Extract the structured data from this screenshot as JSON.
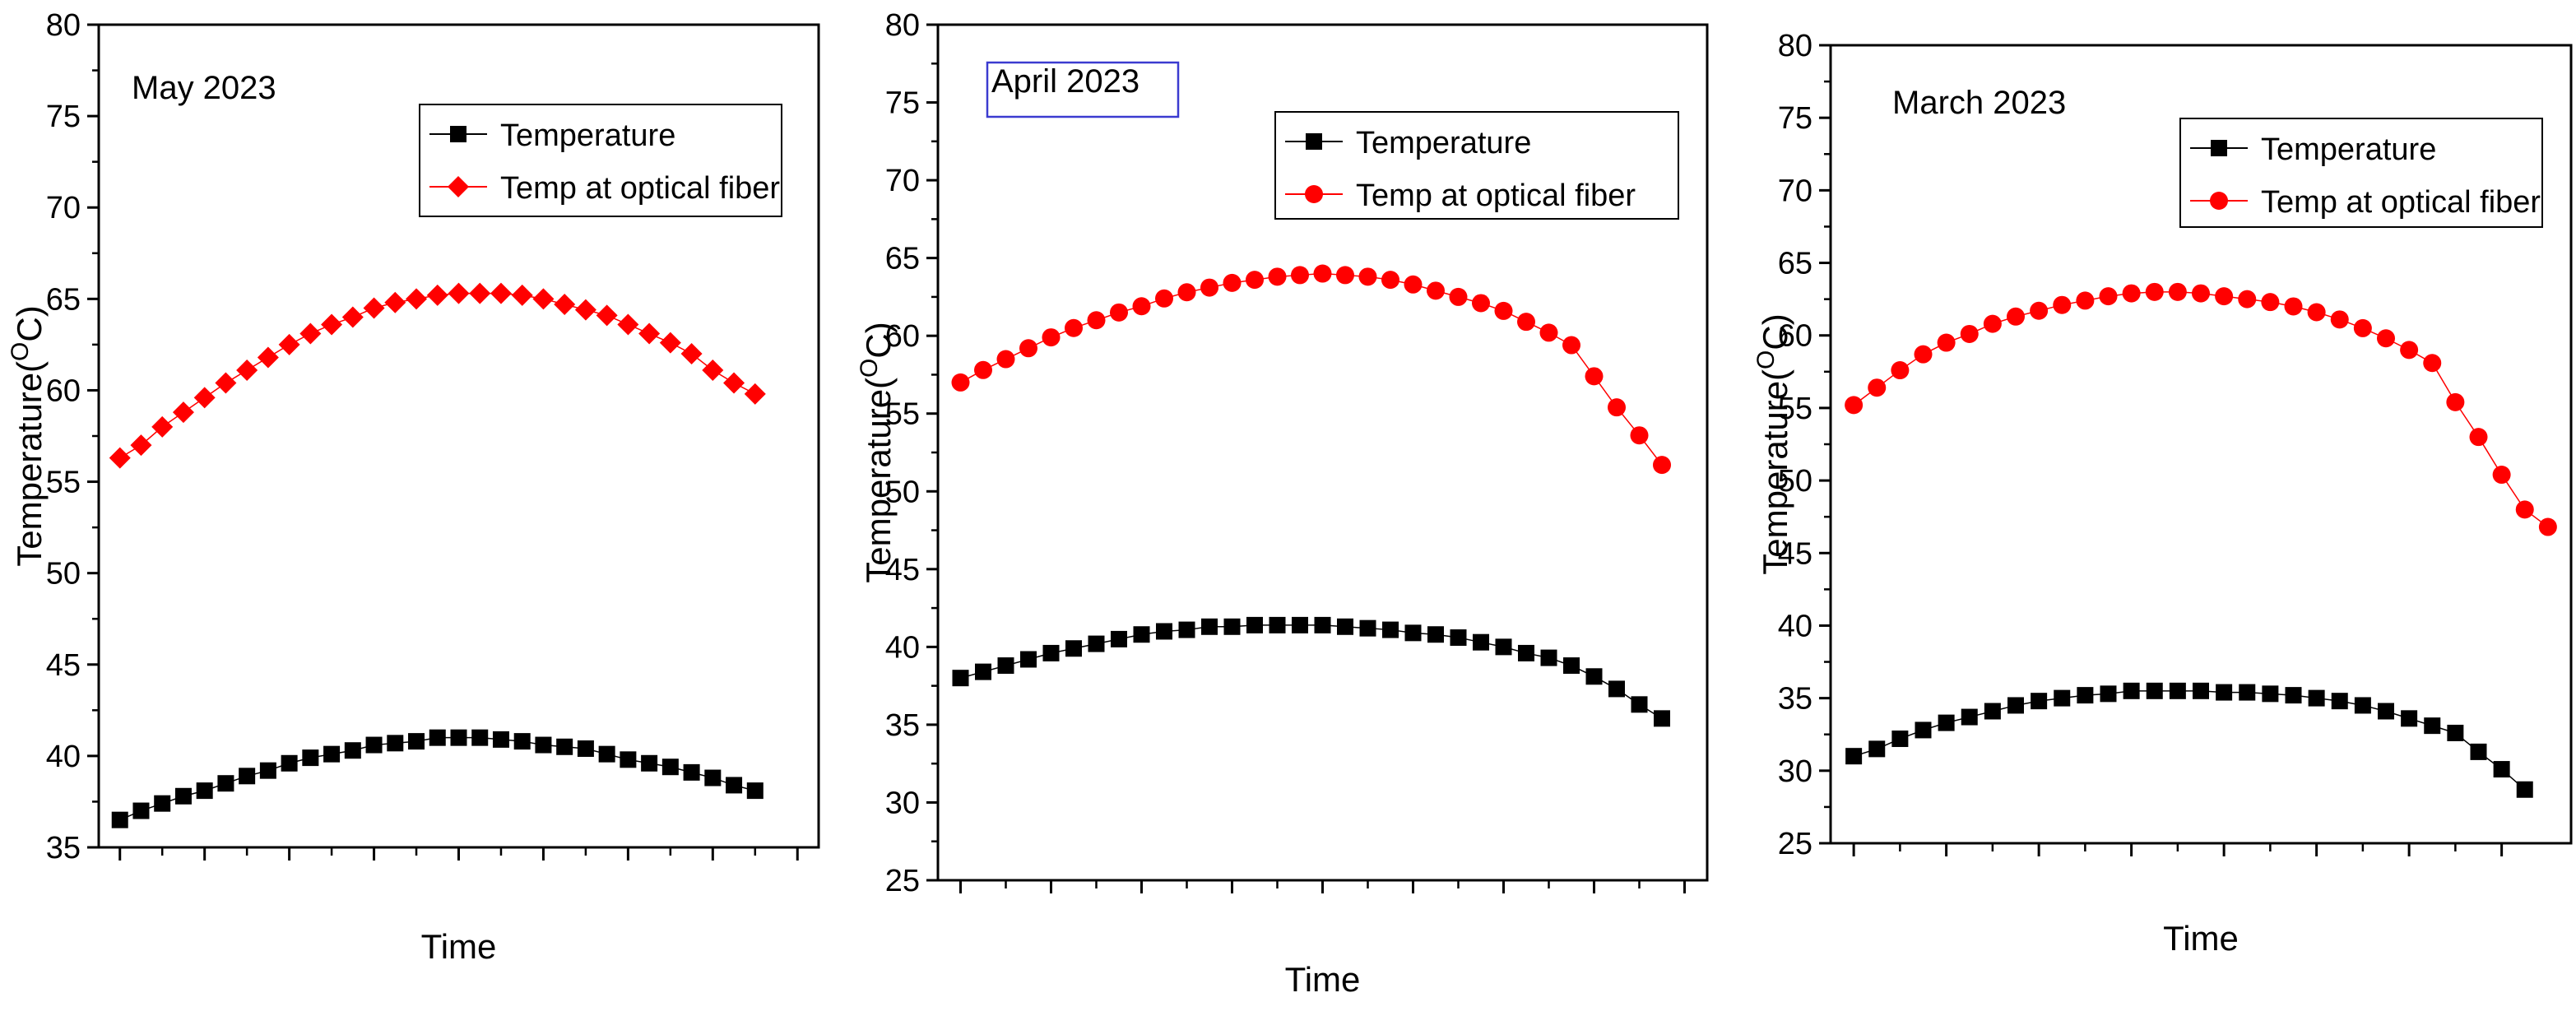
{
  "chart_data": [
    {
      "type": "scatter",
      "panel_label": "May 2023",
      "panel_label_boxed": false,
      "xlabel": "Time",
      "ylabel": "Temperature(",
      "ylabel_sup": "O",
      "ylabel_unit": "C)",
      "ylim": [
        35,
        80
      ],
      "yticks": [
        35,
        40,
        45,
        50,
        55,
        60,
        65,
        70,
        75,
        80
      ],
      "xlim": [
        -1,
        33
      ],
      "xticks": [
        0,
        4,
        8,
        12,
        16,
        20,
        24,
        28,
        32
      ],
      "grid": false,
      "legend_position": "top-right",
      "series": [
        {
          "name": "Temperature",
          "color": "#000000",
          "marker": "square",
          "x": [
            0,
            1,
            2,
            3,
            4,
            5,
            6,
            7,
            8,
            9,
            10,
            11,
            12,
            13,
            14,
            15,
            16,
            17,
            18,
            19,
            20,
            21,
            22,
            23,
            24,
            25,
            26,
            27,
            28,
            29,
            30
          ],
          "values": [
            36.5,
            37,
            37.4,
            37.8,
            38.1,
            38.5,
            38.9,
            39.2,
            39.6,
            39.9,
            40.1,
            40.3,
            40.6,
            40.7,
            40.8,
            41,
            41,
            41,
            40.9,
            40.8,
            40.6,
            40.5,
            40.4,
            40.1,
            39.8,
            39.6,
            39.4,
            39.1,
            38.8,
            38.4,
            38.1
          ]
        },
        {
          "name": "Temp at  optical fiber",
          "color": "#ff0000",
          "marker": "diamond",
          "x": [
            0,
            1,
            2,
            3,
            4,
            5,
            6,
            7,
            8,
            9,
            10,
            11,
            12,
            13,
            14,
            15,
            16,
            17,
            18,
            19,
            20,
            21,
            22,
            23,
            24,
            25,
            26,
            27,
            28,
            29,
            30
          ],
          "values": [
            56.3,
            57,
            58,
            58.8,
            59.6,
            60.4,
            61.1,
            61.8,
            62.5,
            63.1,
            63.6,
            64,
            64.5,
            64.8,
            65,
            65.2,
            65.3,
            65.3,
            65.3,
            65.2,
            65,
            64.7,
            64.4,
            64.1,
            63.6,
            63.1,
            62.6,
            62,
            61.1,
            60.4,
            59.8
          ]
        }
      ]
    },
    {
      "type": "scatter",
      "panel_label": "April 2023",
      "panel_label_boxed": true,
      "xlabel": "Time",
      "ylabel": "Temperature(",
      "ylabel_sup": "O",
      "ylabel_unit": "C)",
      "ylim": [
        25,
        80
      ],
      "yticks": [
        25,
        30,
        35,
        40,
        45,
        50,
        55,
        60,
        65,
        70,
        75,
        80
      ],
      "xlim": [
        -1,
        33
      ],
      "xticks": [
        0,
        4,
        8,
        12,
        16,
        20,
        24,
        28,
        32
      ],
      "grid": false,
      "legend_position": "top-right",
      "series": [
        {
          "name": "Temperature",
          "color": "#000000",
          "marker": "square",
          "x": [
            0,
            1,
            2,
            3,
            4,
            5,
            6,
            7,
            8,
            9,
            10,
            11,
            12,
            13,
            14,
            15,
            16,
            17,
            18,
            19,
            20,
            21,
            22,
            23,
            24,
            25,
            26,
            27,
            28,
            29,
            30,
            31
          ],
          "values": [
            38,
            38.4,
            38.8,
            39.2,
            39.6,
            39.9,
            40.2,
            40.5,
            40.8,
            41,
            41.1,
            41.3,
            41.3,
            41.4,
            41.4,
            41.4,
            41.4,
            41.3,
            41.2,
            41.1,
            40.9,
            40.8,
            40.6,
            40.3,
            40,
            39.6,
            39.3,
            38.8,
            38.1,
            37.3,
            36.3,
            35.4
          ]
        },
        {
          "name": "Temp at  optical fiber",
          "color": "#ff0000",
          "marker": "circle",
          "x": [
            0,
            1,
            2,
            3,
            4,
            5,
            6,
            7,
            8,
            9,
            10,
            11,
            12,
            13,
            14,
            15,
            16,
            17,
            18,
            19,
            20,
            21,
            22,
            23,
            24,
            25,
            26,
            27,
            28,
            29,
            30,
            31
          ],
          "values": [
            57,
            57.8,
            58.5,
            59.2,
            59.9,
            60.5,
            61,
            61.5,
            61.9,
            62.4,
            62.8,
            63.1,
            63.4,
            63.6,
            63.8,
            63.9,
            64,
            63.9,
            63.8,
            63.6,
            63.3,
            62.9,
            62.5,
            62.1,
            61.6,
            60.9,
            60.2,
            59.4,
            57.4,
            55.4,
            53.6,
            51.7
          ]
        }
      ]
    },
    {
      "type": "scatter",
      "panel_label": "March 2023",
      "panel_label_boxed": false,
      "xlabel": "Time",
      "ylabel": "Temperature(",
      "ylabel_sup": "O",
      "ylabel_unit": "C)",
      "ylim": [
        25,
        80
      ],
      "yticks": [
        25,
        30,
        35,
        40,
        45,
        50,
        55,
        60,
        65,
        70,
        75,
        80
      ],
      "xlim": [
        -1,
        31
      ],
      "xticks": [
        0,
        4,
        8,
        12,
        16,
        20,
        24,
        28
      ],
      "grid": false,
      "legend_position": "top-right",
      "series": [
        {
          "name": "Temperature",
          "color": "#000000",
          "marker": "square",
          "x": [
            0,
            1,
            2,
            3,
            4,
            5,
            6,
            7,
            8,
            9,
            10,
            11,
            12,
            13,
            14,
            15,
            16,
            17,
            18,
            19,
            20,
            21,
            22,
            23,
            24,
            25,
            26,
            27,
            28,
            29
          ],
          "values": [
            31,
            31.5,
            32.2,
            32.8,
            33.3,
            33.7,
            34.1,
            34.5,
            34.8,
            35,
            35.2,
            35.3,
            35.5,
            35.5,
            35.5,
            35.5,
            35.4,
            35.4,
            35.3,
            35.2,
            35,
            34.8,
            34.5,
            34.1,
            33.6,
            33.1,
            32.6,
            31.3,
            30.1,
            28.7
          ]
        },
        {
          "name": "Temp at  optical fiber",
          "color": "#ff0000",
          "marker": "circle",
          "x": [
            0,
            1,
            2,
            3,
            4,
            5,
            6,
            7,
            8,
            9,
            10,
            11,
            12,
            13,
            14,
            15,
            16,
            17,
            18,
            19,
            20,
            21,
            22,
            23,
            24,
            25,
            26,
            27,
            28,
            29,
            30
          ],
          "values": [
            55.2,
            56.4,
            57.6,
            58.7,
            59.5,
            60.1,
            60.8,
            61.3,
            61.7,
            62.1,
            62.4,
            62.7,
            62.9,
            63,
            63,
            62.9,
            62.7,
            62.5,
            62.3,
            62,
            61.6,
            61.1,
            60.5,
            59.8,
            59,
            58.1,
            55.4,
            53,
            50.4,
            48,
            46.8
          ]
        }
      ]
    }
  ]
}
